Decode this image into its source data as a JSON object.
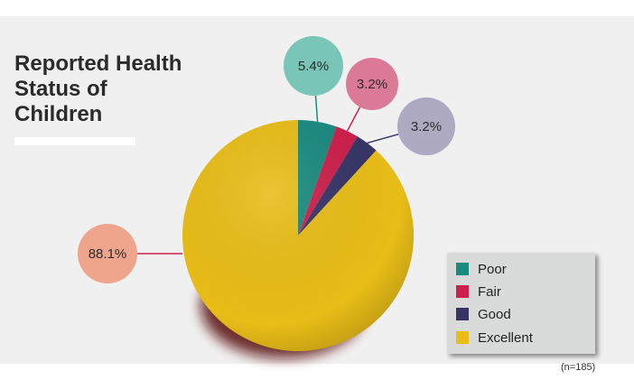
{
  "chart_data": {
    "type": "pie",
    "title": "Reported Health Status of Children",
    "categories": [
      "Poor",
      "Fair",
      "Good",
      "Excellent"
    ],
    "values": [
      5.4,
      3.2,
      3.2,
      88.1
    ],
    "data_labels": [
      "5.4%",
      "3.2%",
      "3.2%",
      "88.1%"
    ],
    "colors": [
      "#1a8a7f",
      "#cc1f4b",
      "#363566",
      "#e8bd17"
    ],
    "label_bubble_colors": [
      "#79c6b9",
      "#db7a97",
      "#aeaac2",
      "#eea58c"
    ],
    "legend": {
      "position": "bottom-right",
      "entries": [
        "Poor",
        "Fair",
        "Good",
        "Excellent"
      ]
    },
    "note": "(n=185)"
  }
}
